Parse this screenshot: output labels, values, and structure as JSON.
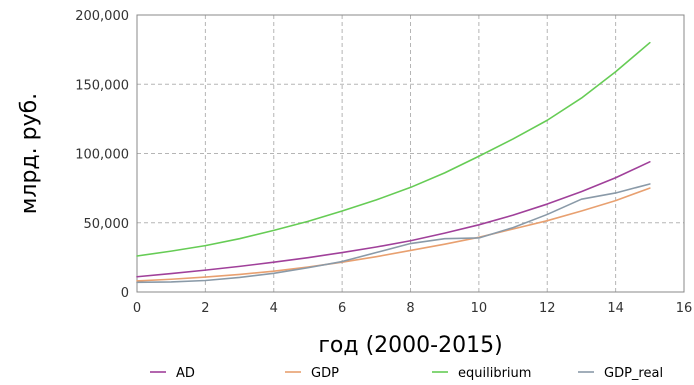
{
  "chart_data": {
    "type": "line",
    "title": "",
    "xlabel": "год (2000-2015)",
    "ylabel": "млрд. руб.",
    "xlim": [
      0,
      16
    ],
    "ylim": [
      0,
      200000
    ],
    "x_ticks": [
      0,
      2,
      4,
      6,
      8,
      10,
      12,
      14,
      16
    ],
    "y_ticks": [
      0,
      50000,
      100000,
      150000,
      200000
    ],
    "x_tick_labels": [
      "0",
      "2",
      "4",
      "6",
      "8",
      "10",
      "12",
      "14",
      "16"
    ],
    "y_tick_labels": [
      "0",
      "50,000",
      "100,000",
      "150,000",
      "200,000"
    ],
    "grid": true,
    "legend_position": "bottom",
    "x": [
      0,
      1,
      2,
      3,
      4,
      5,
      6,
      7,
      8,
      9,
      10,
      11,
      12,
      13,
      14,
      15
    ],
    "series": [
      {
        "name": "AD",
        "color": "#a0409a",
        "values": [
          11000,
          13300,
          15800,
          18500,
          21500,
          24800,
          28500,
          32500,
          37000,
          42500,
          48500,
          55500,
          63500,
          72500,
          82500,
          94000
        ]
      },
      {
        "name": "GDP",
        "color": "#e8a070",
        "values": [
          8000,
          9200,
          10800,
          12700,
          15000,
          18000,
          21500,
          25500,
          30000,
          34500,
          39500,
          45500,
          51500,
          58500,
          66000,
          75000
        ]
      },
      {
        "name": "equilibrium",
        "color": "#66cc55",
        "values": [
          26000,
          29500,
          33500,
          38500,
          44500,
          51000,
          58500,
          66500,
          75500,
          86000,
          98000,
          110500,
          124000,
          140000,
          159000,
          180000
        ]
      },
      {
        "name": "GDP_real",
        "color": "#8a9aa8",
        "values": [
          7000,
          7300,
          8300,
          10500,
          13500,
          17500,
          22000,
          28500,
          35000,
          38500,
          39000,
          46500,
          56000,
          67000,
          71500,
          78000
        ]
      }
    ]
  }
}
